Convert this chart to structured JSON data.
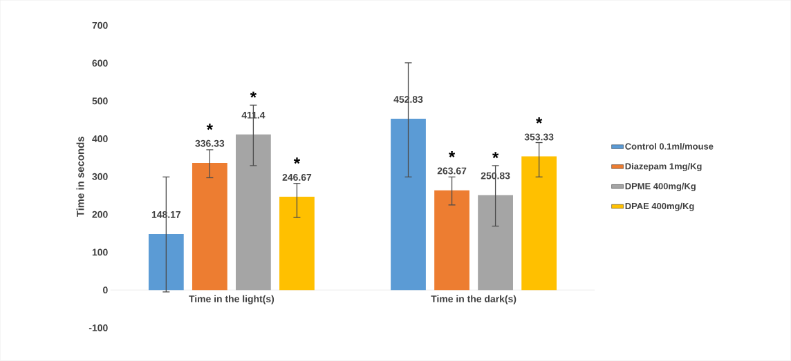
{
  "chart_data": {
    "type": "bar",
    "ylabel": "Time in seconds",
    "categories": [
      "Time in the light(s)",
      "Time in the dark(s)"
    ],
    "series": [
      {
        "name": "Control 0.1ml/mouse",
        "color": "#5b9bd5",
        "values": [
          148.17,
          452.83
        ],
        "errors": [
          [
            -5,
            299
          ],
          [
            299,
            601
          ]
        ]
      },
      {
        "name": "Diazepam 1mg/Kg",
        "color": "#ed7d31",
        "values": [
          336.33,
          263.67
        ],
        "errors": [
          [
            297,
            371
          ],
          [
            225,
            299
          ]
        ]
      },
      {
        "name": "DPME 400mg/Kg",
        "color": "#a5a5a5",
        "values": [
          411.4,
          250.83
        ],
        "errors": [
          [
            329,
            489
          ],
          [
            169,
            329
          ]
        ]
      },
      {
        "name": "DPAE 400mg/Kg",
        "color": "#ffc000",
        "values": [
          246.67,
          353.33
        ],
        "errors": [
          [
            192,
            282
          ],
          [
            299,
            390
          ]
        ]
      }
    ],
    "annotations": [
      "*",
      "*",
      "*",
      "*",
      "*",
      "*"
    ],
    "ylim": [
      -100,
      700
    ],
    "yticks": [
      -100,
      0,
      100,
      200,
      300,
      400,
      500,
      600,
      700
    ],
    "data_labels": true,
    "legend": "right",
    "grid": false
  }
}
